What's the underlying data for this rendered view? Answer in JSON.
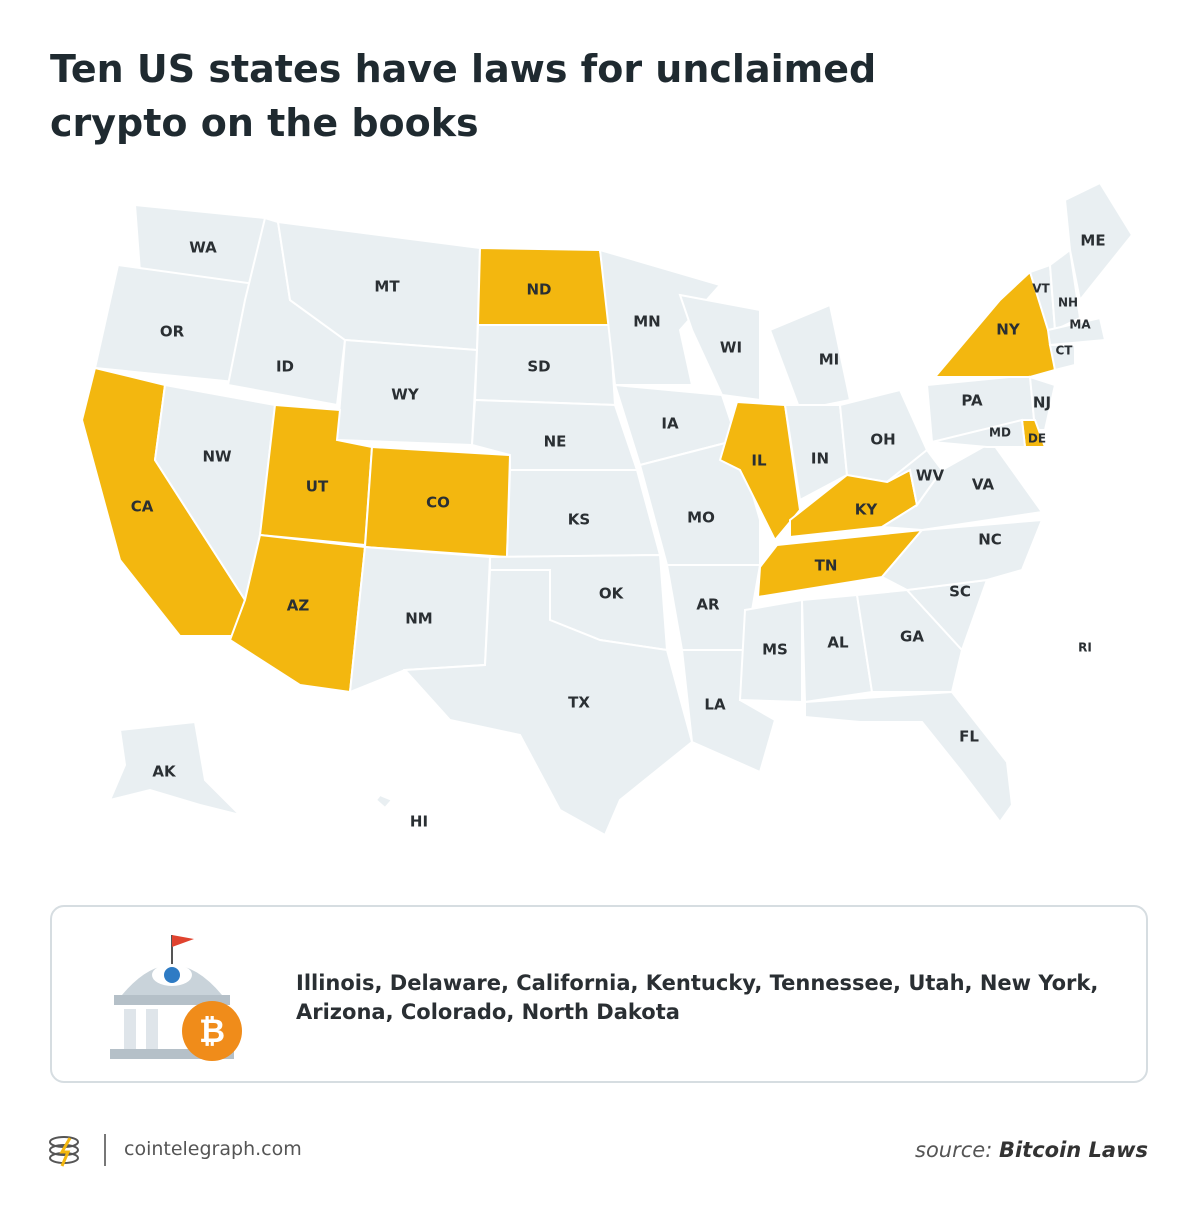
{
  "title": "Ten US states have laws for unclaimed crypto on the books",
  "map": {
    "base_color": "#e9eff2",
    "highlight_color": "#f3b70f",
    "states": [
      {
        "label": "WA",
        "highlighted": false
      },
      {
        "label": "OR",
        "highlighted": false
      },
      {
        "label": "CA",
        "highlighted": true
      },
      {
        "label": "NW",
        "highlighted": false
      },
      {
        "label": "ID",
        "highlighted": false
      },
      {
        "label": "MT",
        "highlighted": false
      },
      {
        "label": "WY",
        "highlighted": false
      },
      {
        "label": "UT",
        "highlighted": true
      },
      {
        "label": "CO",
        "highlighted": true
      },
      {
        "label": "AZ",
        "highlighted": true
      },
      {
        "label": "NM",
        "highlighted": false
      },
      {
        "label": "ND",
        "highlighted": true
      },
      {
        "label": "SD",
        "highlighted": false
      },
      {
        "label": "NE",
        "highlighted": false
      },
      {
        "label": "KS",
        "highlighted": false
      },
      {
        "label": "OK",
        "highlighted": false
      },
      {
        "label": "TX",
        "highlighted": false
      },
      {
        "label": "MN",
        "highlighted": false
      },
      {
        "label": "IA",
        "highlighted": false
      },
      {
        "label": "MO",
        "highlighted": false
      },
      {
        "label": "AR",
        "highlighted": false
      },
      {
        "label": "LA",
        "highlighted": false
      },
      {
        "label": "WI",
        "highlighted": false
      },
      {
        "label": "IL",
        "highlighted": true
      },
      {
        "label": "MI",
        "highlighted": false
      },
      {
        "label": "IN",
        "highlighted": false
      },
      {
        "label": "OH",
        "highlighted": false
      },
      {
        "label": "KY",
        "highlighted": true
      },
      {
        "label": "TN",
        "highlighted": true
      },
      {
        "label": "MS",
        "highlighted": false
      },
      {
        "label": "AL",
        "highlighted": false
      },
      {
        "label": "GA",
        "highlighted": false
      },
      {
        "label": "FL",
        "highlighted": false
      },
      {
        "label": "SC",
        "highlighted": false
      },
      {
        "label": "NC",
        "highlighted": false
      },
      {
        "label": "VA",
        "highlighted": false
      },
      {
        "label": "WV",
        "highlighted": false
      },
      {
        "label": "PA",
        "highlighted": false
      },
      {
        "label": "NY",
        "highlighted": true
      },
      {
        "label": "NJ",
        "highlighted": false
      },
      {
        "label": "DE",
        "highlighted": true
      },
      {
        "label": "MD",
        "highlighted": false
      },
      {
        "label": "VT",
        "highlighted": false
      },
      {
        "label": "NH",
        "highlighted": false
      },
      {
        "label": "ME",
        "highlighted": false
      },
      {
        "label": "MA",
        "highlighted": false
      },
      {
        "label": "CT",
        "highlighted": false
      },
      {
        "label": "RI",
        "highlighted": false
      },
      {
        "label": "AK",
        "highlighted": false
      },
      {
        "label": "HI",
        "highlighted": false
      }
    ]
  },
  "legend": {
    "text": "Illinois, Delaware, California, Kentucky, Tennessee, Utah, New York, Arizona, Colorado, North Dakota"
  },
  "footer": {
    "site": "cointelegraph.com",
    "source_label": "source:",
    "source": "Bitcoin Laws"
  }
}
